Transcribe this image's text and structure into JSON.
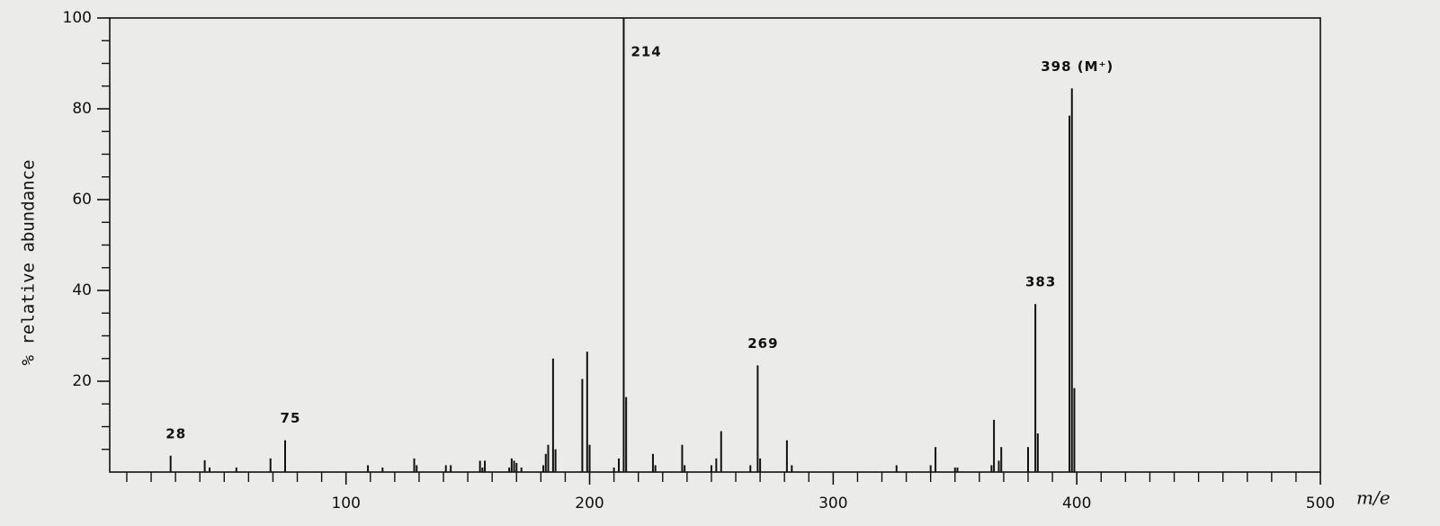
{
  "chart_data": {
    "type": "bar",
    "y_label": "% relative abundance",
    "x_label": "m/e",
    "x": [
      28,
      42,
      44,
      55,
      69,
      75,
      109,
      115,
      128,
      129,
      141,
      143,
      155,
      156,
      157,
      167,
      168,
      169,
      170,
      172,
      181,
      182,
      183,
      185,
      186,
      197,
      199,
      200,
      210,
      212,
      214,
      215,
      226,
      227,
      238,
      239,
      250,
      252,
      254,
      266,
      269,
      270,
      281,
      283,
      326,
      340,
      342,
      350,
      351,
      365,
      366,
      368,
      369,
      380,
      383,
      384,
      397,
      398,
      399
    ],
    "values": [
      3.6,
      2.6,
      1,
      1,
      3,
      7,
      1.5,
      1,
      3,
      1.5,
      1.5,
      1.5,
      2.5,
      1,
      2.5,
      1,
      3,
      2.5,
      2,
      1,
      1.5,
      4,
      6,
      25,
      5,
      20.5,
      26.5,
      6,
      1,
      3,
      100,
      16.5,
      4,
      1.5,
      6,
      1.5,
      1.5,
      3,
      9,
      1.5,
      23.5,
      3,
      7,
      1.5,
      1.5,
      1.5,
      5.5,
      1,
      1,
      1.5,
      11.5,
      2.5,
      5.5,
      5.5,
      37,
      8.5,
      78.5,
      84.5,
      18.5
    ],
    "color": "#111111",
    "annotations": [
      {
        "text": "28",
        "x": 28
      },
      {
        "text": "75",
        "x": 75
      },
      {
        "text": "214",
        "x": 214
      },
      {
        "text": "269",
        "x": 269
      },
      {
        "text": "383",
        "x": 383
      },
      {
        "text": "398 (M⁺)",
        "x": 398
      }
    ],
    "xlim": [
      3,
      500
    ],
    "ylim": [
      0,
      100
    ],
    "xticks": [
      100,
      200,
      300,
      400,
      500
    ],
    "yticks": [
      20,
      40,
      60,
      80,
      100
    ],
    "xminorticks": [
      10,
      20,
      30,
      40,
      50,
      60,
      70,
      80,
      90,
      110,
      120,
      130,
      140,
      150,
      160,
      170,
      180,
      190,
      210,
      220,
      230,
      240,
      250,
      260,
      270,
      280,
      290,
      310,
      320,
      330,
      340,
      350,
      360,
      370,
      380,
      390,
      410,
      420,
      430,
      440,
      450,
      460,
      470,
      480,
      490
    ],
    "yminorticks": [
      5,
      10,
      15,
      25,
      30,
      35,
      45,
      50,
      55,
      65,
      70,
      75,
      85,
      90,
      95
    ],
    "grid": false
  }
}
